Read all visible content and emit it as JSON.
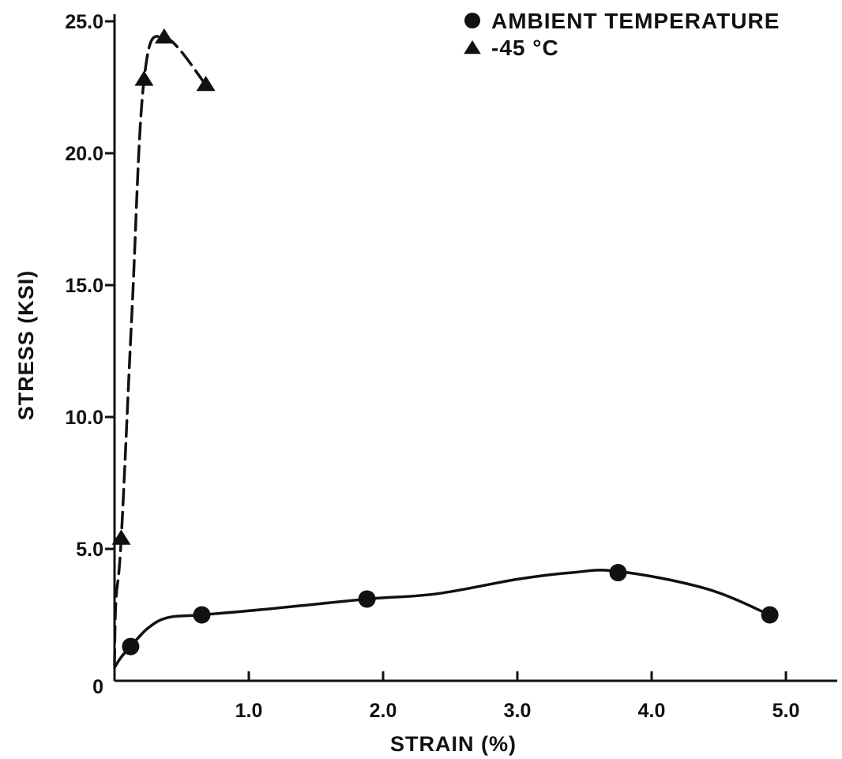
{
  "chart_data": {
    "type": "line",
    "title": "",
    "xlabel": "STRAIN (%)",
    "ylabel": "STRESS (KSI)",
    "xlim": [
      0,
      5.3
    ],
    "ylim": [
      0,
      25.3
    ],
    "x_ticks": [
      {
        "value": 1.0,
        "label": "1.0"
      },
      {
        "value": 2.0,
        "label": "2.0"
      },
      {
        "value": 3.0,
        "label": "3.0"
      },
      {
        "value": 4.0,
        "label": "4.0"
      },
      {
        "value": 5.0,
        "label": "5.0"
      }
    ],
    "y_ticks": [
      {
        "value": 0,
        "label": "0"
      },
      {
        "value": 5.0,
        "label": "5.0"
      },
      {
        "value": 10.0,
        "label": "10.0"
      },
      {
        "value": 15.0,
        "label": "15.0"
      },
      {
        "value": 20.0,
        "label": "20.0"
      },
      {
        "value": 25.0,
        "label": "25.0"
      }
    ],
    "grid": false,
    "legend_position": "top-right",
    "series": [
      {
        "name": "AMBIENT TEMPERATURE",
        "marker": "circle",
        "line_style": "solid",
        "color": "#111111",
        "points": [
          {
            "x": 0.12,
            "y": 1.3
          },
          {
            "x": 0.65,
            "y": 2.5
          },
          {
            "x": 1.88,
            "y": 3.1
          },
          {
            "x": 3.75,
            "y": 4.1
          },
          {
            "x": 4.88,
            "y": 2.5
          }
        ],
        "curve": [
          {
            "x": 0.0,
            "y": 0.5
          },
          {
            "x": 0.05,
            "y": 0.9
          },
          {
            "x": 0.12,
            "y": 1.3
          },
          {
            "x": 0.25,
            "y": 2.0
          },
          {
            "x": 0.4,
            "y": 2.4
          },
          {
            "x": 0.65,
            "y": 2.5
          },
          {
            "x": 1.2,
            "y": 2.75
          },
          {
            "x": 1.88,
            "y": 3.1
          },
          {
            "x": 2.4,
            "y": 3.3
          },
          {
            "x": 3.0,
            "y": 3.85
          },
          {
            "x": 3.4,
            "y": 4.1
          },
          {
            "x": 3.75,
            "y": 4.15
          },
          {
            "x": 4.4,
            "y": 3.5
          },
          {
            "x": 4.88,
            "y": 2.5
          }
        ]
      },
      {
        "name": "-45 °C",
        "marker": "triangle",
        "line_style": "dashed",
        "color": "#111111",
        "points": [
          {
            "x": 0.05,
            "y": 5.4
          },
          {
            "x": 0.22,
            "y": 22.8
          },
          {
            "x": 0.37,
            "y": 24.4
          },
          {
            "x": 0.68,
            "y": 22.6
          }
        ],
        "curve": [
          {
            "x": 0.0,
            "y": 0.6
          },
          {
            "x": 0.01,
            "y": 3.0
          },
          {
            "x": 0.05,
            "y": 5.4
          },
          {
            "x": 0.13,
            "y": 14.0
          },
          {
            "x": 0.22,
            "y": 22.8
          },
          {
            "x": 0.37,
            "y": 24.4
          },
          {
            "x": 0.68,
            "y": 22.6
          }
        ]
      }
    ],
    "legend": [
      {
        "marker": "circle",
        "label": "AMBIENT TEMPERATURE"
      },
      {
        "marker": "triangle",
        "label": "-45 °C"
      }
    ]
  }
}
